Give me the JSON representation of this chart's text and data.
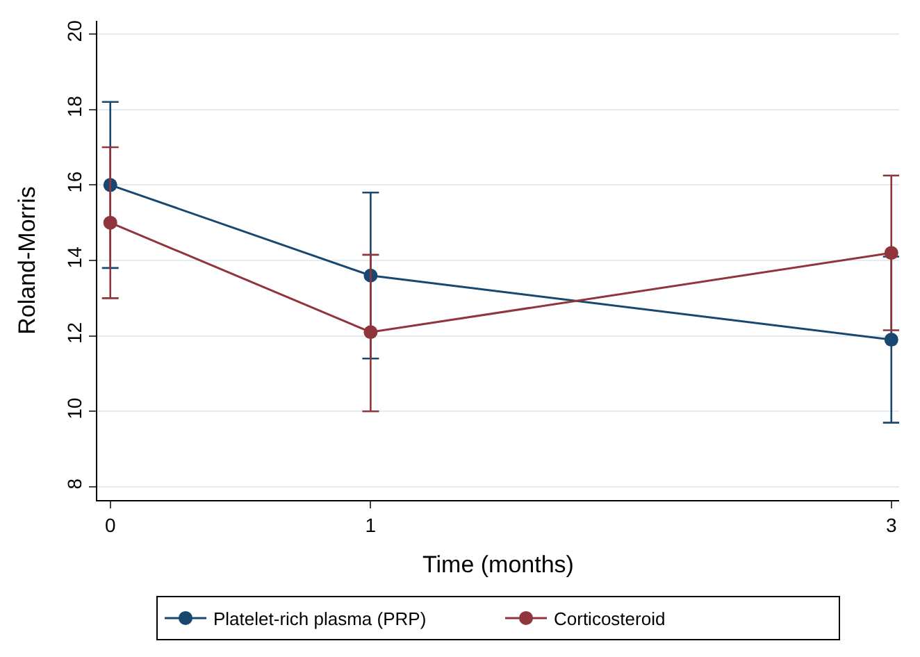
{
  "chart_data": {
    "type": "line",
    "xlabel": "Time (months)",
    "ylabel": "Roland-Morris",
    "x": [
      0,
      1,
      3
    ],
    "xlim": [
      -0.05,
      3.03
    ],
    "xticks": [
      0,
      1,
      3
    ],
    "ylim": [
      7.65,
      20.35
    ],
    "yticks": [
      8,
      10,
      12,
      14,
      16,
      18,
      20
    ],
    "grid": "y",
    "legend": "bottom",
    "marker": "circle",
    "line_style": "solid",
    "series": [
      {
        "name": "Platelet-rich plasma (PRP)",
        "color": "#1a476f",
        "values": [
          16.0,
          13.6,
          11.9
        ],
        "errors": [
          [
            13.8,
            18.2
          ],
          [
            11.4,
            15.8
          ],
          [
            9.7,
            14.1
          ]
        ]
      },
      {
        "name": "Corticosteroid",
        "color": "#90353b",
        "values": [
          15.0,
          12.1,
          14.2
        ],
        "errors": [
          [
            13.0,
            17.0
          ],
          [
            10.0,
            14.15
          ],
          [
            12.15,
            16.25
          ]
        ]
      }
    ]
  }
}
